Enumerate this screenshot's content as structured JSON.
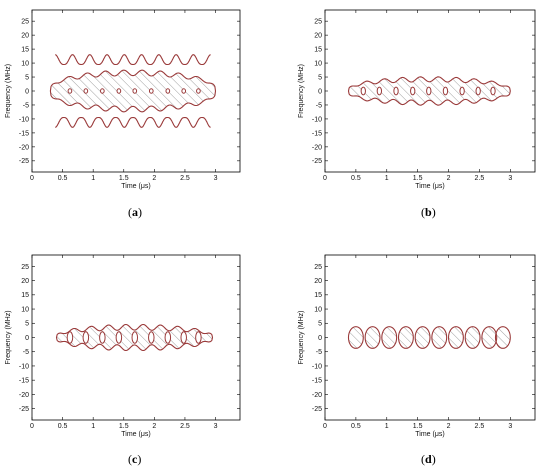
{
  "panel_captions": [
    {
      "open": "(",
      "letter": "a",
      "close": ")"
    },
    {
      "open": "(",
      "letter": "b",
      "close": ")"
    },
    {
      "open": "(",
      "letter": "c",
      "close": ")"
    },
    {
      "open": "(",
      "letter": "d",
      "close": ")"
    }
  ],
  "colors": {
    "contour": "#9a3a3a",
    "hatch": "#777777",
    "axis": "#000000",
    "background": "#ffffff"
  },
  "chart_data": [
    {
      "type": "contour",
      "xlabel": "Time (μs)",
      "ylabel": "Frequency (MHz)",
      "xlim": [
        0,
        3.4
      ],
      "ylim": [
        -29,
        29
      ],
      "xticks": [
        0,
        0.5,
        1,
        1.5,
        2,
        2.5,
        3
      ],
      "xticklabels": [
        "0",
        "0.5",
        "1",
        "1.5",
        "2",
        "2.5",
        "3"
      ],
      "yticks": [
        25,
        20,
        15,
        10,
        5,
        0,
        -5,
        -10,
        -15,
        -20,
        -25
      ],
      "yticklabels": [
        "25",
        "20",
        "15",
        "10",
        "5",
        "0",
        "-5",
        "-10",
        "-15",
        "-20",
        "-25"
      ],
      "region": {
        "t_start": 0.3,
        "t_end": 3.0,
        "freq_half_width": 6.5,
        "edge_ripple": 1.0,
        "lobes": 9
      },
      "side_lobes": {
        "present": true,
        "freq_offset": 9.5,
        "height": 3.5
      },
      "holes": [
        {
          "t": 0.62,
          "f": 0
        },
        {
          "t": 0.88,
          "f": 0
        },
        {
          "t": 1.15,
          "f": 0
        },
        {
          "t": 1.42,
          "f": 0
        },
        {
          "t": 1.68,
          "f": 0
        },
        {
          "t": 1.95,
          "f": 0
        },
        {
          "t": 2.22,
          "f": 0
        },
        {
          "t": 2.48,
          "f": 0
        },
        {
          "t": 2.72,
          "f": 0
        }
      ],
      "hole_radius": {
        "t": 0.03,
        "f": 0.8
      },
      "grid": false
    },
    {
      "type": "contour",
      "xlabel": "Time (μs)",
      "ylabel": "Frequency (MHz)",
      "xlim": [
        0,
        3.4
      ],
      "ylim": [
        -29,
        29
      ],
      "xticks": [
        0,
        0.5,
        1,
        1.5,
        2,
        2.5,
        3
      ],
      "xticklabels": [
        "0",
        "0.5",
        "1",
        "1.5",
        "2",
        "2.5",
        "3"
      ],
      "yticks": [
        25,
        20,
        15,
        10,
        5,
        0,
        -5,
        -10,
        -15,
        -20,
        -25
      ],
      "yticklabels": [
        "25",
        "20",
        "15",
        "10",
        "5",
        "0",
        "-5",
        "-10",
        "-15",
        "-20",
        "-25"
      ],
      "region": {
        "t_start": 0.38,
        "t_end": 3.0,
        "freq_half_width": 4.2,
        "edge_ripple": 0.9,
        "lobes": 9
      },
      "side_lobes": {
        "present": false
      },
      "holes": [
        {
          "t": 0.62,
          "f": 0
        },
        {
          "t": 0.88,
          "f": 0
        },
        {
          "t": 1.15,
          "f": 0
        },
        {
          "t": 1.42,
          "f": 0
        },
        {
          "t": 1.68,
          "f": 0
        },
        {
          "t": 1.95,
          "f": 0
        },
        {
          "t": 2.22,
          "f": 0
        },
        {
          "t": 2.48,
          "f": 0
        },
        {
          "t": 2.72,
          "f": 0
        }
      ],
      "hole_radius": {
        "t": 0.035,
        "f": 1.4
      },
      "grid": false
    },
    {
      "type": "contour",
      "xlabel": "Time (μs)",
      "ylabel": "Frequency (MHz)",
      "xlim": [
        0,
        3.4
      ],
      "ylim": [
        -29,
        29
      ],
      "xticks": [
        0,
        0.5,
        1,
        1.5,
        2,
        2.5,
        3
      ],
      "xticklabels": [
        "0",
        "0.5",
        "1",
        "1.5",
        "2",
        "2.5",
        "3"
      ],
      "yticks": [
        25,
        20,
        15,
        10,
        5,
        0,
        -5,
        -10,
        -15,
        -20,
        -25
      ],
      "yticklabels": [
        "25",
        "20",
        "15",
        "10",
        "5",
        "0",
        "-5",
        "-10",
        "-15",
        "-20",
        "-25"
      ],
      "region": {
        "t_start": 0.4,
        "t_end": 2.95,
        "freq_half_width": 3.6,
        "edge_ripple": 1.0,
        "lobes": 9
      },
      "side_lobes": {
        "present": false
      },
      "holes": [
        {
          "t": 0.62,
          "f": 0
        },
        {
          "t": 0.88,
          "f": 0
        },
        {
          "t": 1.15,
          "f": 0
        },
        {
          "t": 1.42,
          "f": 0
        },
        {
          "t": 1.68,
          "f": 0
        },
        {
          "t": 1.95,
          "f": 0
        },
        {
          "t": 2.22,
          "f": 0
        },
        {
          "t": 2.48,
          "f": 0
        },
        {
          "t": 2.72,
          "f": 0
        }
      ],
      "hole_radius": {
        "t": 0.045,
        "f": 2.0
      },
      "grid": false
    },
    {
      "type": "contour",
      "xlabel": "Time (μs)",
      "ylabel": "Frequency (MHz)",
      "xlim": [
        0,
        3.4
      ],
      "ylim": [
        -29,
        29
      ],
      "xticks": [
        0,
        0.5,
        1,
        1.5,
        2,
        2.5,
        3
      ],
      "xticklabels": [
        "0",
        "0.5",
        "1",
        "1.5",
        "2",
        "2.5",
        "3"
      ],
      "yticks": [
        25,
        20,
        15,
        10,
        5,
        0,
        -5,
        -10,
        -15,
        -20,
        -25
      ],
      "yticklabels": [
        "25",
        "20",
        "15",
        "10",
        "5",
        "0",
        "-5",
        "-10",
        "-15",
        "-20",
        "-25"
      ],
      "cells": [
        {
          "t": 0.5,
          "f": 0
        },
        {
          "t": 0.77,
          "f": 0
        },
        {
          "t": 1.04,
          "f": 0
        },
        {
          "t": 1.31,
          "f": 0
        },
        {
          "t": 1.58,
          "f": 0
        },
        {
          "t": 1.85,
          "f": 0
        },
        {
          "t": 2.12,
          "f": 0
        },
        {
          "t": 2.39,
          "f": 0
        },
        {
          "t": 2.66,
          "f": 0
        },
        {
          "t": 2.88,
          "f": 0
        }
      ],
      "cell_half_width": {
        "t": 0.12,
        "f": 3.8
      },
      "grid": false
    }
  ]
}
